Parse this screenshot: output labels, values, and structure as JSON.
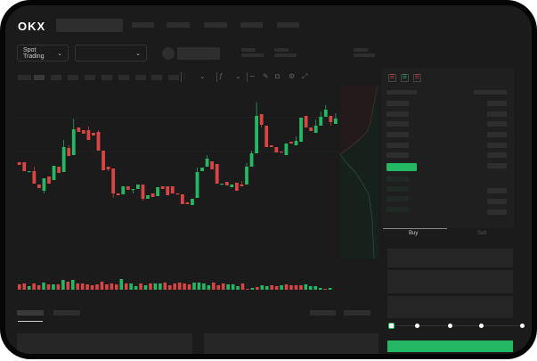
{
  "brand": {
    "logo": "OKX"
  },
  "header": {
    "nav_items": [
      "",
      "",
      "",
      "",
      ""
    ]
  },
  "market_bar": {
    "mode_select": "Spot Trading",
    "mode_chevron": "chevron-down-icon",
    "pair_select": "",
    "pair_chevron": "chevron-down-icon"
  },
  "toolbar": {
    "icons": [
      "candle-type-icon",
      "chevron-down-icon",
      "indicator-icon",
      "chevron-down-icon",
      "line-icon",
      "draw-icon",
      "camera-icon",
      "settings-icon",
      "fullscreen-icon"
    ]
  },
  "colors": {
    "up": "#25b864",
    "down": "#d84545",
    "bg": "#1b1b1b",
    "placeholder": "#2e2e2e"
  },
  "chart": {
    "candles": [
      [
        58,
        55,
        58,
        55
      ],
      [
        58,
        48,
        58,
        48
      ],
      [
        47,
        48,
        48,
        47
      ],
      [
        48,
        34,
        53,
        34
      ],
      [
        33,
        29,
        33,
        29
      ],
      [
        26,
        40,
        40,
        23
      ],
      [
        42,
        34,
        42,
        34
      ],
      [
        38,
        54,
        54,
        38
      ],
      [
        53,
        46,
        53,
        46
      ],
      [
        47,
        75,
        83,
        47
      ],
      [
        74,
        65,
        77,
        65
      ],
      [
        66,
        95,
        107,
        66
      ],
      [
        97,
        92,
        97,
        92
      ],
      [
        94,
        90,
        94,
        90
      ],
      [
        94,
        83,
        98,
        83
      ],
      [
        91,
        88,
        91,
        88
      ],
      [
        92,
        71,
        94,
        71
      ],
      [
        71,
        49,
        71,
        49
      ],
      [
        53,
        50,
        53,
        48
      ],
      [
        51,
        23,
        51,
        18
      ],
      [
        23,
        21,
        23,
        21
      ],
      [
        22,
        31,
        31,
        22
      ],
      [
        31,
        27,
        31,
        27
      ],
      [
        27,
        28,
        28,
        23
      ],
      [
        28,
        33,
        33,
        28
      ],
      [
        33,
        17,
        33,
        15
      ],
      [
        17,
        21,
        21,
        17
      ],
      [
        23,
        19,
        23,
        19
      ],
      [
        20,
        30,
        30,
        20
      ],
      [
        31,
        28,
        31,
        28
      ],
      [
        31,
        21,
        31,
        21
      ],
      [
        31,
        23,
        31,
        23
      ],
      [
        23,
        22,
        23,
        22
      ],
      [
        22,
        11,
        22,
        11
      ],
      [
        13,
        11,
        13,
        11
      ],
      [
        10,
        17,
        17,
        10
      ],
      [
        18,
        47,
        52,
        18
      ],
      [
        48,
        52,
        52,
        48
      ],
      [
        53,
        62,
        66,
        53
      ],
      [
        59,
        50,
        59,
        50
      ],
      [
        56,
        34,
        56,
        34
      ],
      [
        33,
        34,
        34,
        33
      ],
      [
        36,
        32,
        36,
        32
      ],
      [
        30,
        33,
        33,
        30
      ],
      [
        35,
        26,
        35,
        26
      ],
      [
        33,
        31,
        37,
        31
      ],
      [
        33,
        53,
        57,
        33
      ],
      [
        53,
        68,
        71,
        53
      ],
      [
        68,
        110,
        125,
        68
      ],
      [
        112,
        100,
        112,
        97
      ],
      [
        99,
        75,
        99,
        75
      ],
      [
        77,
        75,
        77,
        75
      ],
      [
        75,
        69,
        75,
        69
      ],
      [
        70,
        69,
        70,
        69
      ],
      [
        66,
        79,
        79,
        66
      ],
      [
        81,
        79,
        81,
        79
      ],
      [
        77,
        82,
        87,
        77
      ],
      [
        81,
        108,
        108,
        81
      ],
      [
        110,
        97,
        110,
        97
      ],
      [
        97,
        93,
        97,
        93
      ],
      [
        91,
        99,
        106,
        91
      ],
      [
        99,
        109,
        115,
        99
      ],
      [
        109,
        117,
        122,
        109
      ],
      [
        110,
        103,
        110,
        99
      ],
      [
        101,
        107,
        113,
        101
      ]
    ],
    "volume": [
      [
        6,
        "d"
      ],
      [
        7,
        "d"
      ],
      [
        4,
        "u"
      ],
      [
        7,
        "d"
      ],
      [
        5,
        "d"
      ],
      [
        8,
        "u"
      ],
      [
        6,
        "d"
      ],
      [
        6,
        "u"
      ],
      [
        6,
        "d"
      ],
      [
        11,
        "u"
      ],
      [
        9,
        "d"
      ],
      [
        11,
        "u"
      ],
      [
        7,
        "d"
      ],
      [
        7,
        "d"
      ],
      [
        6,
        "d"
      ],
      [
        5,
        "d"
      ],
      [
        6,
        "d"
      ],
      [
        9,
        "d"
      ],
      [
        6,
        "d"
      ],
      [
        7,
        "d"
      ],
      [
        6,
        "d"
      ],
      [
        12,
        "u"
      ],
      [
        7,
        "d"
      ],
      [
        7,
        "u"
      ],
      [
        4,
        "u"
      ],
      [
        7,
        "d"
      ],
      [
        5,
        "u"
      ],
      [
        7,
        "d"
      ],
      [
        7,
        "u"
      ],
      [
        7,
        "u"
      ],
      [
        8,
        "d"
      ],
      [
        5,
        "d"
      ],
      [
        7,
        "d"
      ],
      [
        8,
        "d"
      ],
      [
        7,
        "d"
      ],
      [
        6,
        "d"
      ],
      [
        8,
        "u"
      ],
      [
        8,
        "u"
      ],
      [
        7,
        "u"
      ],
      [
        5,
        "u"
      ],
      [
        8,
        "d"
      ],
      [
        5,
        "d"
      ],
      [
        7,
        "d"
      ],
      [
        6,
        "u"
      ],
      [
        6,
        "u"
      ],
      [
        4,
        "u"
      ],
      [
        7,
        "d"
      ],
      [
        1,
        "d"
      ],
      [
        2,
        "u"
      ],
      [
        3,
        "d"
      ],
      [
        5,
        "u"
      ],
      [
        4,
        "u"
      ],
      [
        5,
        "d"
      ],
      [
        4,
        "d"
      ],
      [
        5,
        "u"
      ],
      [
        6,
        "d"
      ],
      [
        5,
        "d"
      ],
      [
        5,
        "d"
      ],
      [
        5,
        "d"
      ],
      [
        6,
        "u"
      ],
      [
        4,
        "u"
      ],
      [
        4,
        "u"
      ],
      [
        2,
        "u"
      ],
      [
        1,
        "d"
      ],
      [
        2,
        "u"
      ]
    ]
  },
  "order_book": {
    "view_icons": [
      "book-both-icon",
      "book-bids-icon",
      "book-asks-icon"
    ]
  },
  "trade_form": {
    "tabs": [
      "Buy",
      "Sell"
    ],
    "active_tab": "Buy",
    "slider_percent": 0
  },
  "bottom": {
    "tabs": [
      "",
      ""
    ]
  }
}
